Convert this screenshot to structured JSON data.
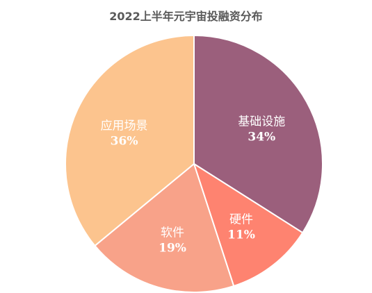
{
  "chart_data": {
    "type": "pie",
    "title": "2022上半年元宇宙投融资分布",
    "slices": [
      {
        "label": "基础设施",
        "value": 34,
        "display": "34%",
        "color": "#9b5f7c"
      },
      {
        "label": "硬件",
        "value": 11,
        "display": "11%",
        "color": "#fe8370"
      },
      {
        "label": "软件",
        "value": 19,
        "display": "19%",
        "color": "#f8a289"
      },
      {
        "label": "应用场景",
        "value": 36,
        "display": "36%",
        "color": "#fcc48e"
      }
    ]
  }
}
